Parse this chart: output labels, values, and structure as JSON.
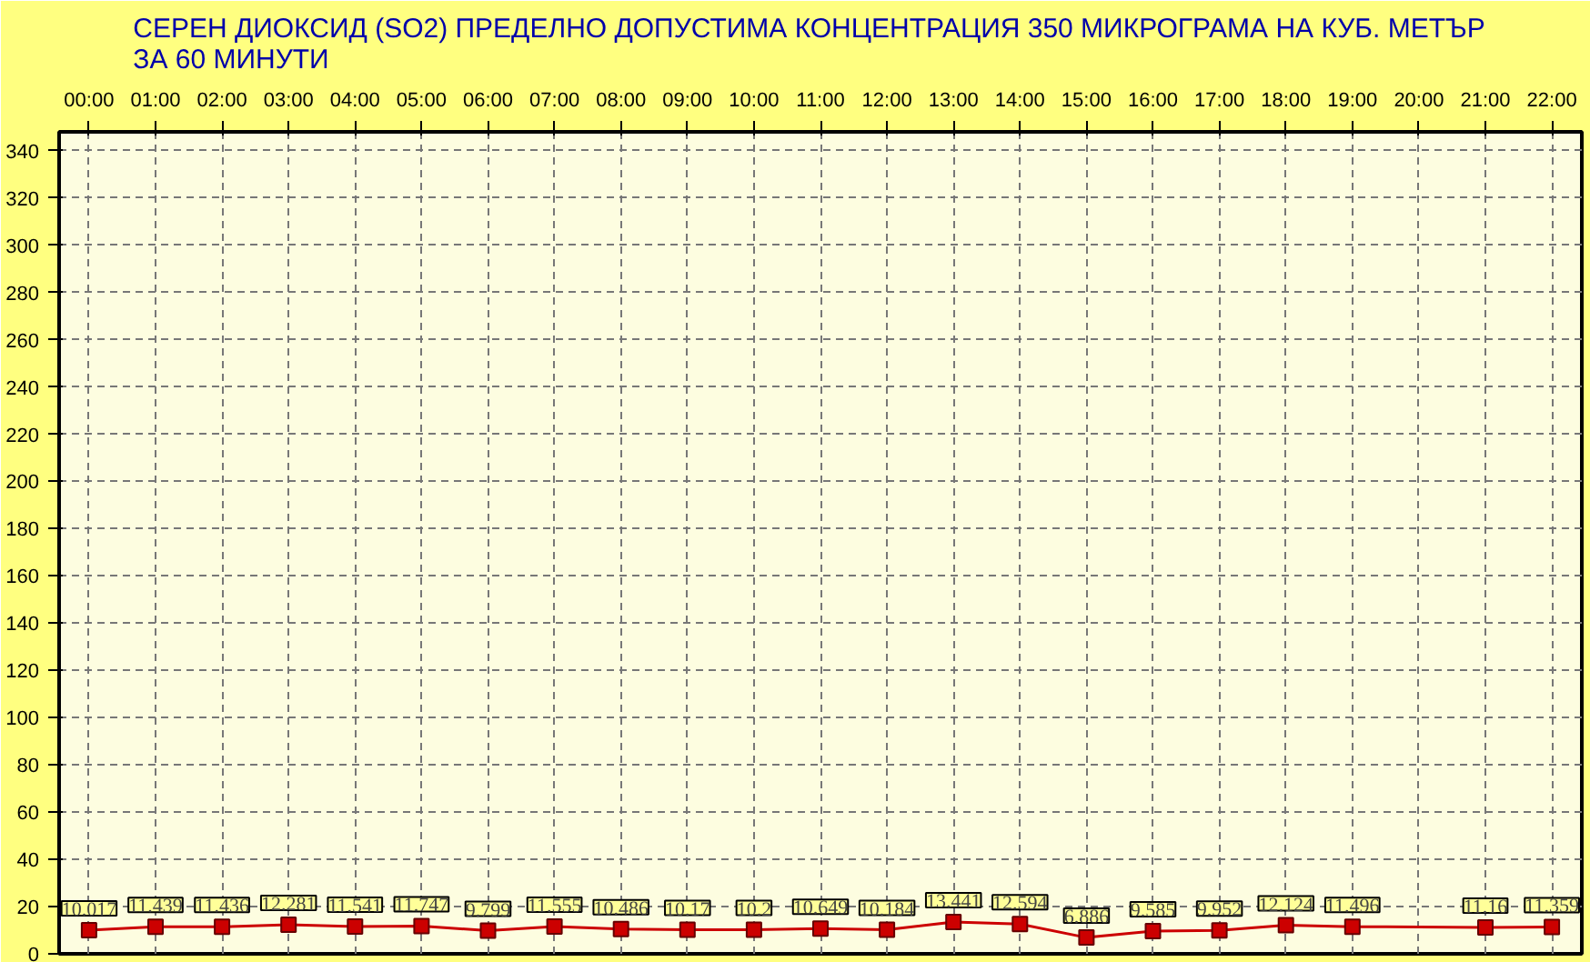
{
  "chart_data": {
    "type": "line",
    "title": "СЕРЕН ДИОКСИД  (SO2)  ПРЕДЕЛНО ДОПУСТИМА КОНЦЕНТРАЦИЯ 350 МИКРОГРАМА  НА КУБ. МЕТЪР\nЗА 60 МИНУТИ",
    "categories": [
      "00:00",
      "01:00",
      "02:00",
      "03:00",
      "04:00",
      "05:00",
      "06:00",
      "07:00",
      "08:00",
      "09:00",
      "10:00",
      "11:00",
      "12:00",
      "13:00",
      "14:00",
      "15:00",
      "16:00",
      "17:00",
      "18:00",
      "19:00",
      "20:00",
      "21:00",
      "22:00"
    ],
    "series": [
      {
        "color": "#cc0000",
        "values": [
          10.017,
          11.439,
          11.436,
          12.281,
          11.541,
          11.747,
          9.799,
          11.555,
          10.486,
          10.17,
          10.2,
          10.649,
          10.184,
          13.441,
          12.594,
          6.886,
          9.585,
          9.952,
          12.124,
          11.496,
          null,
          11.16,
          11.359
        ]
      }
    ],
    "ylim": [
      0,
      348
    ],
    "yticks": [
      0,
      20,
      40,
      60,
      80,
      100,
      120,
      140,
      160,
      180,
      200,
      220,
      240,
      260,
      280,
      300,
      320,
      340
    ],
    "grid": true,
    "marker": "square",
    "line_style": "solid",
    "data_labels": true
  }
}
